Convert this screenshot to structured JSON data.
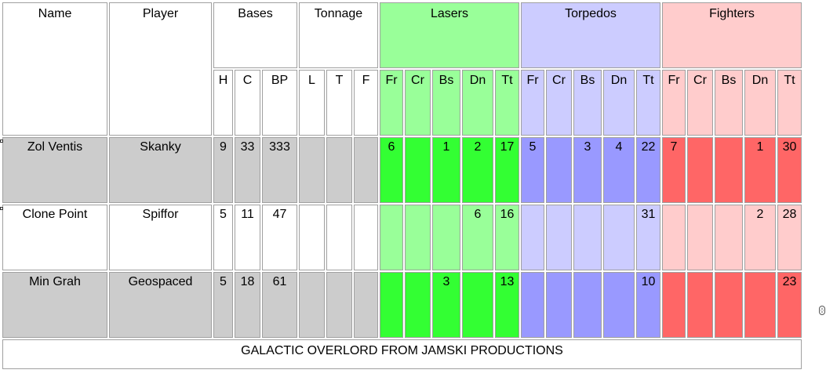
{
  "colors": {
    "white": "#ffffff",
    "gray_row": "#cccccc",
    "lasers_light": "#99ff99",
    "lasers_dark": "#33ff33",
    "torpedos_light": "#ccccff",
    "torpedos_dark": "#9999ff",
    "fighters_light": "#ffcccc",
    "fighters_dark": "#ff6666"
  },
  "headers": {
    "name": "Name",
    "player": "Player",
    "bases": "Bases",
    "tonnage": "Tonnage",
    "lasers": "Lasers",
    "torpedos": "Torpedos",
    "fighters": "Fighters"
  },
  "subheaders": {
    "bases": [
      "H",
      "C",
      "BP"
    ],
    "tonnage": [
      "L",
      "T",
      "F"
    ],
    "ship_classes": [
      "Fr",
      "Cr",
      "Bs",
      "Dn",
      "Tt"
    ]
  },
  "rows": [
    {
      "name": "Zol Ventis",
      "player": "Skanky",
      "shade": "dark",
      "bases": [
        "9",
        "33",
        "333"
      ],
      "tonnage": [
        "",
        "",
        ""
      ],
      "lasers": [
        "6",
        "",
        "1",
        "2",
        "17"
      ],
      "torpedos": [
        "5",
        "",
        "3",
        "4",
        "22"
      ],
      "fighters": [
        "7",
        "",
        "",
        "1",
        "30"
      ]
    },
    {
      "name": "Clone Point",
      "player": "Spiffor",
      "shade": "light",
      "bases": [
        "5",
        "11",
        "47"
      ],
      "tonnage": [
        "",
        "",
        ""
      ],
      "lasers": [
        "",
        "",
        "",
        "6",
        "16"
      ],
      "torpedos": [
        "",
        "",
        "",
        "",
        "31"
      ],
      "fighters": [
        "",
        "",
        "",
        "2",
        "28"
      ]
    },
    {
      "name": "Min Grah",
      "player": "Geospaced",
      "shade": "dark",
      "bases": [
        "5",
        "18",
        "61"
      ],
      "tonnage": [
        "",
        "",
        ""
      ],
      "lasers": [
        "",
        "",
        "3",
        "",
        "13"
      ],
      "torpedos": [
        "",
        "",
        "",
        "",
        "10"
      ],
      "fighters": [
        "",
        "",
        "",
        "",
        "23"
      ]
    }
  ],
  "footer": "GALACTIC OVERLORD FROM JAMSKI PRODUCTIONS"
}
